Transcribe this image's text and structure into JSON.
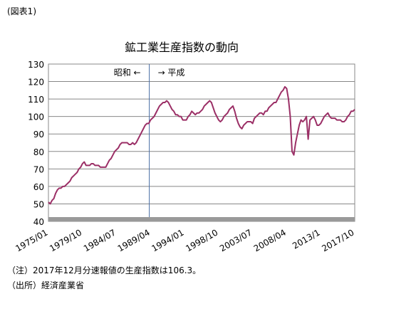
{
  "header": {
    "label": "(図表1)"
  },
  "chart_data": {
    "type": "line",
    "title": "鉱工業生産指数の動向",
    "categories": [
      "1975/01",
      null,
      null,
      null,
      null,
      null,
      null,
      null,
      null,
      null,
      null,
      null,
      null,
      null,
      null,
      null,
      null,
      null,
      null,
      "1979/10",
      null,
      null,
      null,
      null,
      null,
      null,
      null,
      null,
      null,
      null,
      null,
      null,
      null,
      null,
      null,
      null,
      null,
      null,
      "1984/07",
      null,
      null,
      null,
      null,
      null,
      null,
      null,
      null,
      null,
      null,
      null,
      null,
      null,
      null,
      null,
      null,
      null,
      null,
      "1989/04",
      null,
      null,
      null,
      null,
      null,
      null,
      null,
      null,
      null,
      null,
      null,
      null,
      null,
      null,
      null,
      null,
      null,
      null,
      "1994/01",
      null,
      null,
      null,
      null,
      null,
      null,
      null,
      null,
      null,
      null,
      null,
      null,
      null,
      null,
      null,
      null,
      null,
      null,
      "1998/10",
      null,
      null,
      null,
      null,
      null,
      null,
      null,
      null,
      null,
      null,
      null,
      null,
      null,
      null,
      null,
      null,
      null,
      null,
      "2003/07",
      null,
      null,
      null,
      null,
      null,
      null,
      null,
      null,
      null,
      null,
      null,
      null,
      null,
      null,
      null,
      null,
      null,
      null,
      "2008/04",
      null,
      null,
      null,
      null,
      null,
      null,
      null,
      null,
      null,
      null,
      null,
      null,
      null,
      null,
      null,
      null,
      null,
      null,
      "2013/1",
      null,
      null,
      null,
      null,
      null,
      null,
      null,
      null,
      null,
      null,
      null,
      null,
      null,
      null,
      null,
      null,
      null,
      null,
      "2017/10"
    ],
    "series": [
      {
        "color": "#9b2f66",
        "values": [
          51,
          50,
          52,
          53,
          56,
          58,
          59,
          59,
          60,
          60,
          61,
          62,
          63,
          65,
          66,
          67,
          68,
          70,
          71,
          73,
          74,
          72,
          72,
          72,
          73,
          73,
          72,
          72,
          72,
          71,
          71,
          71,
          71,
          73,
          75,
          76,
          78,
          80,
          81,
          82,
          84,
          85,
          85,
          85,
          85,
          84,
          84,
          85,
          84,
          85,
          87,
          89,
          91,
          93,
          95,
          96,
          96,
          98,
          99,
          100,
          102,
          104,
          106,
          107,
          108,
          108,
          109,
          108,
          106,
          104,
          103,
          101,
          101,
          100,
          100,
          98,
          98,
          98,
          100,
          101,
          103,
          102,
          101,
          102,
          102,
          103,
          104,
          106,
          107,
          108,
          109,
          108,
          105,
          102,
          100,
          98,
          97,
          98,
          100,
          101,
          102,
          104,
          105,
          106,
          103,
          99,
          96,
          94,
          93,
          95,
          96,
          97,
          97,
          97,
          96,
          99,
          100,
          101,
          102,
          102,
          101,
          103,
          103,
          105,
          106,
          107,
          108,
          108,
          110,
          112,
          114,
          115,
          117,
          116,
          110,
          100,
          80,
          78,
          85,
          90,
          95,
          98,
          97,
          98,
          100,
          87,
          98,
          99,
          100,
          98,
          95,
          95,
          96,
          98,
          100,
          101,
          102,
          100,
          99,
          99,
          99,
          98,
          98,
          98,
          97,
          97,
          98,
          100,
          101,
          103,
          103,
          104
        ]
      }
    ],
    "ylim": [
      40,
      130
    ],
    "yticks": [
      40,
      50,
      60,
      70,
      80,
      90,
      100,
      110,
      120,
      130
    ],
    "grid": true,
    "annotations": [
      "昭和 ←",
      "→ 平成"
    ]
  },
  "notes": [
    "（注）2017年12月分速報値の生産指数は106.3。",
    "（出所）経済産業省"
  ]
}
